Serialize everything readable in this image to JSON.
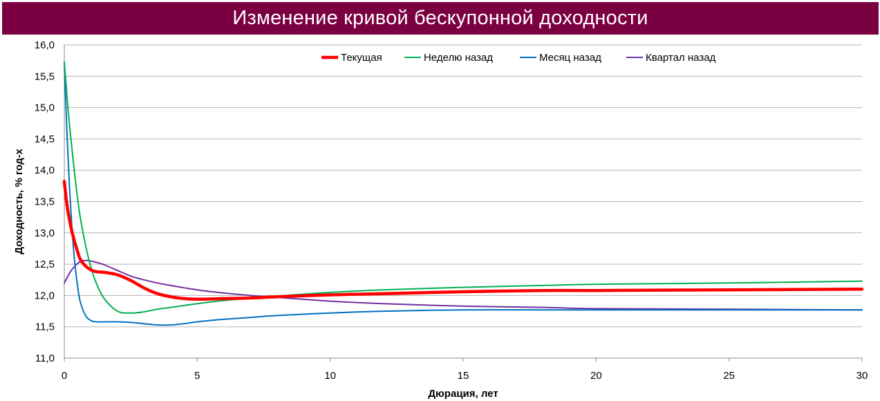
{
  "chart_data": {
    "type": "line",
    "title": "Изменение кривой бескупонной доходности",
    "xlabel": "Дюрация, лет",
    "ylabel": "Доходность, % год-х",
    "xlim": [
      0,
      30
    ],
    "ylim": [
      11.0,
      16.0
    ],
    "x_ticks": [
      "0",
      "5",
      "10",
      "15",
      "20",
      "25",
      "30"
    ],
    "y_ticks": [
      "11,0",
      "11,5",
      "12,0",
      "12,5",
      "13,0",
      "13,5",
      "14,0",
      "14,5",
      "15,0",
      "15,5",
      "16,0"
    ],
    "grid": "horizontal",
    "legend_position": "top",
    "series": [
      {
        "name": "Текущая",
        "color": "#ff0000",
        "x": [
          0,
          0.1,
          0.2,
          0.3,
          0.4,
          0.5,
          0.6,
          0.8,
          1.0,
          1.2,
          1.5,
          2.0,
          2.5,
          3.0,
          3.5,
          4.0,
          4.5,
          5,
          6,
          7,
          8,
          10,
          12,
          15,
          18,
          20,
          25,
          30
        ],
        "values": [
          13.82,
          13.45,
          13.2,
          13.0,
          12.84,
          12.7,
          12.58,
          12.47,
          12.41,
          12.38,
          12.37,
          12.33,
          12.24,
          12.12,
          12.03,
          11.98,
          11.95,
          11.94,
          11.95,
          11.96,
          11.98,
          12.01,
          12.03,
          12.06,
          12.08,
          12.08,
          12.09,
          12.1
        ]
      },
      {
        "name": "Неделю назад",
        "color": "#00b050",
        "x": [
          0,
          0.1,
          0.2,
          0.3,
          0.4,
          0.5,
          0.6,
          0.8,
          1.0,
          1.2,
          1.5,
          2.0,
          2.5,
          3.0,
          3.5,
          4.0,
          5,
          6,
          7,
          8,
          10,
          12,
          15,
          18,
          20,
          25,
          30
        ],
        "values": [
          15.73,
          15.2,
          14.7,
          14.3,
          13.9,
          13.55,
          13.25,
          12.8,
          12.45,
          12.2,
          11.95,
          11.75,
          11.72,
          11.74,
          11.78,
          11.81,
          11.87,
          11.92,
          11.96,
          11.99,
          12.05,
          12.09,
          12.13,
          12.16,
          12.18,
          12.2,
          12.23
        ]
      },
      {
        "name": "Месяц назад",
        "color": "#0070c0",
        "x": [
          0,
          0.1,
          0.2,
          0.3,
          0.4,
          0.5,
          0.6,
          0.8,
          1.0,
          1.2,
          1.5,
          2.0,
          2.5,
          3.0,
          3.5,
          4.0,
          4.5,
          5,
          6,
          7,
          8,
          10,
          12,
          15,
          18,
          20,
          25,
          30
        ],
        "values": [
          15.72,
          14.6,
          13.7,
          13.0,
          12.5,
          12.15,
          11.9,
          11.68,
          11.6,
          11.58,
          11.58,
          11.58,
          11.57,
          11.55,
          11.53,
          11.53,
          11.55,
          11.58,
          11.62,
          11.65,
          11.68,
          11.72,
          11.75,
          11.77,
          11.77,
          11.77,
          11.77,
          11.77
        ]
      },
      {
        "name": "Квартал назад",
        "color": "#7030a0",
        "x": [
          0,
          0.1,
          0.2,
          0.3,
          0.4,
          0.5,
          0.6,
          0.8,
          1.0,
          1.2,
          1.5,
          2.0,
          2.5,
          3.0,
          3.5,
          4.0,
          5,
          6,
          7,
          8,
          10,
          12,
          15,
          18,
          20,
          25,
          30
        ],
        "values": [
          12.2,
          12.28,
          12.36,
          12.42,
          12.47,
          12.51,
          12.54,
          12.56,
          12.55,
          12.53,
          12.49,
          12.4,
          12.31,
          12.25,
          12.2,
          12.16,
          12.09,
          12.04,
          12.0,
          11.97,
          11.91,
          11.87,
          11.83,
          11.81,
          11.79,
          11.78,
          11.77
        ]
      }
    ]
  }
}
